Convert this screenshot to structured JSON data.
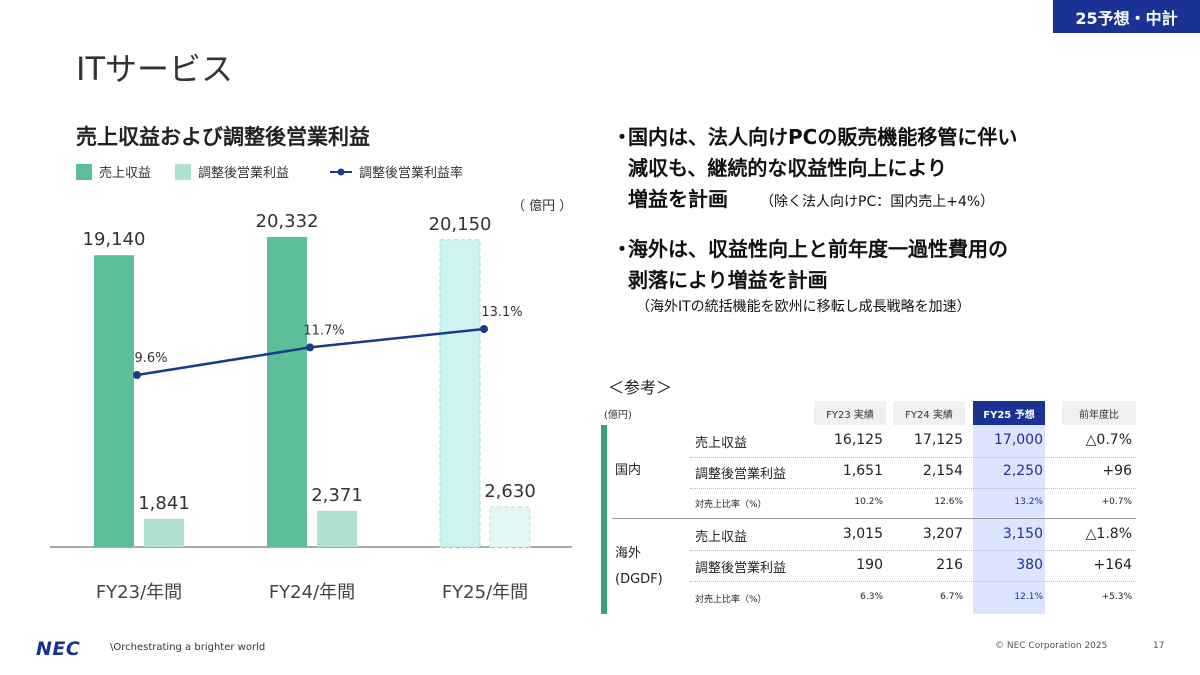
{
  "badge": "25予想・中計",
  "page_title": "ITサービス",
  "chart_data": {
    "type": "bar",
    "title": "売上収益および調整後営業利益",
    "unit_label": "（ 億円 ）",
    "categories": [
      "FY23/年間",
      "FY24/年間",
      "FY25/年間"
    ],
    "series": [
      {
        "name": "売上収益",
        "values": [
          19140,
          20332,
          20150
        ],
        "labels": [
          "19,140",
          "20,332",
          "20,150"
        ]
      },
      {
        "name": "調整後営業利益",
        "values": [
          1841,
          2371,
          2630
        ],
        "labels": [
          "1,841",
          "2,371",
          "2,630"
        ]
      },
      {
        "name": "調整後営業利益率",
        "values": [
          9.6,
          11.7,
          13.1
        ],
        "labels": [
          "9.6%",
          "11.7%",
          "13.1%"
        ],
        "kind": "line"
      }
    ],
    "legend_placement": "top-left",
    "colors": {
      "revenue": "#5dbf9a",
      "profit": "#b0e0d2",
      "forecast_revenue": "#cdf4f0",
      "forecast_profit": "#e3f7f4",
      "rate": "#1a3a8a"
    }
  },
  "bullets": [
    {
      "dot": "・",
      "lines": [
        "国内は、法人向けPCの販売機能移管に伴い",
        "減収も、継続的な収益性向上により",
        "増益を計画"
      ],
      "note": "（除く法人向けPC：国内売上+4%）"
    },
    {
      "dot": "・",
      "lines": [
        "海外は、収益性向上と前年度一過性費用の",
        "剥落により増益を計画"
      ],
      "note": "（海外ITの統括機能を欧州に移転し成長戦略を加速）"
    }
  ],
  "reference": {
    "title": "＜参考＞",
    "unit": "(億円)",
    "headers": [
      "FY23 実績",
      "FY24 実績",
      "FY25 予想",
      "前年度比"
    ],
    "groups": [
      {
        "label_lines": [
          "国内"
        ],
        "rows": [
          {
            "label": "売上収益",
            "values": [
              "16,125",
              "17,125",
              "17,000",
              "△0.7%"
            ]
          },
          {
            "label": "調整後営業利益",
            "values": [
              "1,651",
              "2,154",
              "2,250",
              "+96"
            ]
          },
          {
            "label": "対売上比率（%）",
            "values": [
              "10.2%",
              "12.6%",
              "13.2%",
              "+0.7%"
            ]
          }
        ]
      },
      {
        "label_lines": [
          "海外",
          "(DGDF)"
        ],
        "rows": [
          {
            "label": "売上収益",
            "values": [
              "3,015",
              "3,207",
              "3,150",
              "△1.8%"
            ]
          },
          {
            "label": "調整後営業利益",
            "values": [
              "190",
              "216",
              "380",
              "+164"
            ]
          },
          {
            "label": "対売上比率（%）",
            "values": [
              "6.3%",
              "6.7%",
              "12.1%",
              "+5.3%"
            ]
          }
        ]
      }
    ]
  },
  "footer": {
    "logo": "NEC",
    "tagline": "\\Orchestrating a brighter world",
    "copyright": "© NEC Corporation 2025",
    "page_number": "17"
  }
}
